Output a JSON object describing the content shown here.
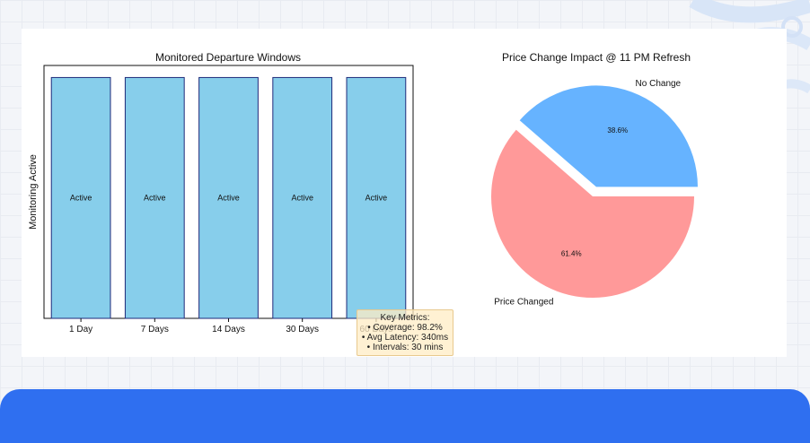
{
  "chart_data": [
    {
      "type": "bar",
      "title": "Monitored Departure Windows",
      "xlabel": "",
      "ylabel": "Monitoring Active",
      "categories": [
        "1 Day",
        "7 Days",
        "14 Days",
        "30 Days",
        "60 Days"
      ],
      "values": [
        1,
        1,
        1,
        1,
        1
      ],
      "bar_labels": [
        "Active",
        "Active",
        "Active",
        "Active",
        "Active"
      ],
      "ylim": [
        0,
        1.05
      ],
      "grid": false,
      "colors": {
        "fill": "#87ceeb",
        "edge": "#1f2a7a"
      }
    },
    {
      "type": "pie",
      "title": "Price Change Impact @ 11 PM Refresh",
      "slices": [
        {
          "label": "No Change",
          "value": 38.6,
          "display": "38.6%",
          "color": "#66b3ff",
          "exploded": true
        },
        {
          "label": "Price Changed",
          "value": 61.4,
          "display": "61.4%",
          "color": "#ff9999",
          "exploded": false
        }
      ]
    }
  ],
  "metrics": {
    "title": "Key Metrics:",
    "coverage": "• Coverage: 98.2%",
    "latency": "• Avg Latency: 340ms",
    "intervals": "• Intervals: 30 mins"
  },
  "theme": {
    "accent": "#2f6ff0"
  }
}
